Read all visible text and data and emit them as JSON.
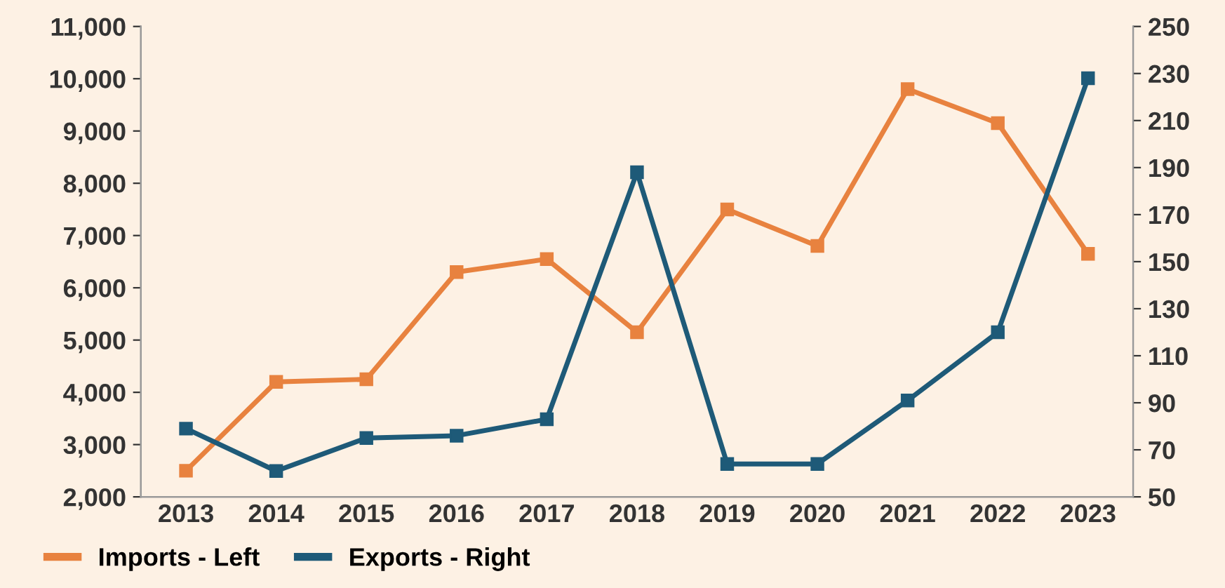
{
  "chart_data": {
    "type": "line",
    "categories": [
      "2013",
      "2014",
      "2015",
      "2016",
      "2017",
      "2018",
      "2019",
      "2020",
      "2021",
      "2022",
      "2023"
    ],
    "series": [
      {
        "name": "Imports - Left",
        "color": "#e8823f",
        "values": [
          2500,
          4200,
          4250,
          6300,
          6550,
          5150,
          7500,
          6800,
          9800,
          9150,
          6650
        ]
      },
      {
        "name": "Exports - Right",
        "color": "#1e5a78",
        "axis": "y2",
        "values": [
          79,
          61,
          75,
          76,
          83,
          188,
          64,
          64,
          91,
          120,
          228
        ]
      }
    ],
    "ylim": [
      2000,
      11000
    ],
    "yticks": [
      {
        "value": 2000,
        "label": "2,000"
      },
      {
        "value": 3000,
        "label": "3,000"
      },
      {
        "value": 4000,
        "label": "4,000"
      },
      {
        "value": 5000,
        "label": "5,000"
      },
      {
        "value": 6000,
        "label": "6,000"
      },
      {
        "value": 7000,
        "label": "7,000"
      },
      {
        "value": 8000,
        "label": "8,000"
      },
      {
        "value": 9000,
        "label": "9,000"
      },
      {
        "value": 10000,
        "label": "10,000"
      },
      {
        "value": 11000,
        "label": "11,000"
      }
    ],
    "y2lim": [
      50,
      250
    ],
    "y2ticks": [
      50,
      70,
      90,
      110,
      130,
      150,
      170,
      190,
      210,
      230,
      250
    ],
    "marker": "square",
    "line_style": "solid",
    "grid": false,
    "legend": "bottom left"
  }
}
